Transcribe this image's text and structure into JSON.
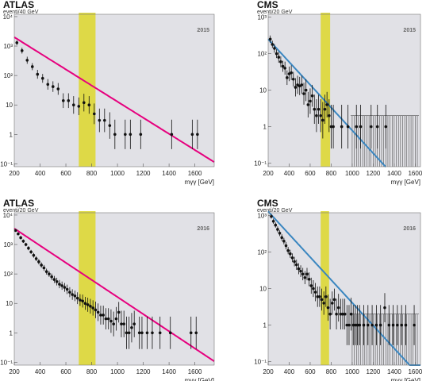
{
  "colors": {
    "plot_bg": "#e1e1e6",
    "band": "#ddd83a",
    "points": "#111111",
    "atlas_fit": "#e6007e",
    "cms_fit": "#3a86c0"
  },
  "chart_data": [
    {
      "type": "scatter",
      "experiment": "ATLAS",
      "unit_label": "eventi/40 GeV",
      "year": "2015",
      "xlabel": "mγγ [GeV]",
      "xlim": [
        200,
        1750
      ],
      "ylim": [
        0.08,
        12000
      ],
      "ylog": true,
      "xticks": [
        "200",
        "400",
        "600",
        "800",
        "1000",
        "1200",
        "1400",
        "1600"
      ],
      "yticks": [
        "10⁻¹",
        "1",
        "10",
        "10²",
        "10³",
        "10⁴"
      ],
      "band": [
        700,
        830
      ],
      "fit": {
        "name": "",
        "a": 2000,
        "slope": 0.0063
      },
      "points": [
        {
          "x": 220,
          "y": 1300,
          "err": 0.08
        },
        {
          "x": 260,
          "y": 700,
          "err": 0.1
        },
        {
          "x": 300,
          "y": 330,
          "err": 0.12
        },
        {
          "x": 340,
          "y": 200,
          "err": 0.12
        },
        {
          "x": 380,
          "y": 110,
          "err": 0.15
        },
        {
          "x": 420,
          "y": 80,
          "err": 0.15
        },
        {
          "x": 460,
          "y": 50,
          "err": 0.18
        },
        {
          "x": 500,
          "y": 42,
          "err": 0.18
        },
        {
          "x": 540,
          "y": 35,
          "err": 0.2
        },
        {
          "x": 580,
          "y": 14,
          "err": 0.25
        },
        {
          "x": 620,
          "y": 14,
          "err": 0.25
        },
        {
          "x": 660,
          "y": 10,
          "err": 0.3
        },
        {
          "x": 700,
          "y": 9,
          "err": 0.3
        },
        {
          "x": 740,
          "y": 12,
          "err": 0.3
        },
        {
          "x": 780,
          "y": 10,
          "err": 0.3
        },
        {
          "x": 820,
          "y": 5,
          "err": 0.35
        },
        {
          "x": 860,
          "y": 3,
          "err": 0.4
        },
        {
          "x": 900,
          "y": 3,
          "err": 0.4
        },
        {
          "x": 940,
          "y": 2,
          "err": 0.45
        },
        {
          "x": 980,
          "y": 1,
          "err": 0.5
        },
        {
          "x": 1060,
          "y": 1,
          "err": 0.5
        },
        {
          "x": 1100,
          "y": 1,
          "err": 0.5
        },
        {
          "x": 1180,
          "y": 1,
          "err": 0.5
        },
        {
          "x": 1420,
          "y": 1,
          "err": 0.5
        },
        {
          "x": 1580,
          "y": 1,
          "err": 0.5
        },
        {
          "x": 1620,
          "y": 1,
          "err": 0.5
        }
      ]
    },
    {
      "type": "scatter",
      "experiment": "CMS",
      "unit_label": "eventi/20 GeV",
      "year": "2015",
      "xlabel": "mγγ [GeV]",
      "xlim": [
        200,
        1650
      ],
      "ylim": [
        0.08,
        1200
      ],
      "ylog": true,
      "xticks": [
        "200",
        "400",
        "600",
        "800",
        "1000",
        "1200",
        "1400",
        "1600"
      ],
      "yticks": [
        "10⁻¹",
        "1",
        "10",
        "10²",
        "10³"
      ],
      "band": [
        700,
        790
      ],
      "fit": {
        "name": "",
        "a": 250,
        "slope": 0.0072,
        "xmax": 1320
      },
      "points": [
        {
          "x": 220,
          "y": 250,
          "err": 0.1
        },
        {
          "x": 240,
          "y": 180,
          "err": 0.1
        },
        {
          "x": 260,
          "y": 140,
          "err": 0.12
        },
        {
          "x": 280,
          "y": 100,
          "err": 0.12
        },
        {
          "x": 300,
          "y": 80,
          "err": 0.15
        },
        {
          "x": 320,
          "y": 60,
          "err": 0.15
        },
        {
          "x": 340,
          "y": 45,
          "err": 0.15
        },
        {
          "x": 360,
          "y": 40,
          "err": 0.18
        },
        {
          "x": 380,
          "y": 22,
          "err": 0.2
        },
        {
          "x": 400,
          "y": 28,
          "err": 0.2
        },
        {
          "x": 420,
          "y": 30,
          "err": 0.2
        },
        {
          "x": 440,
          "y": 20,
          "err": 0.2
        },
        {
          "x": 460,
          "y": 12,
          "err": 0.25
        },
        {
          "x": 480,
          "y": 14,
          "err": 0.25
        },
        {
          "x": 500,
          "y": 13,
          "err": 0.25
        },
        {
          "x": 520,
          "y": 14,
          "err": 0.25
        },
        {
          "x": 540,
          "y": 8,
          "err": 0.3
        },
        {
          "x": 560,
          "y": 10,
          "err": 0.3
        },
        {
          "x": 580,
          "y": 4,
          "err": 0.35
        },
        {
          "x": 600,
          "y": 5,
          "err": 0.35
        },
        {
          "x": 620,
          "y": 7,
          "err": 0.3
        },
        {
          "x": 640,
          "y": 3,
          "err": 0.4
        },
        {
          "x": 660,
          "y": 2,
          "err": 0.45
        },
        {
          "x": 680,
          "y": 3,
          "err": 0.4
        },
        {
          "x": 700,
          "y": 2,
          "err": 0.45
        },
        {
          "x": 720,
          "y": 1.5,
          "err": 0.5
        },
        {
          "x": 740,
          "y": 3,
          "err": 0.4
        },
        {
          "x": 760,
          "y": 4,
          "err": 0.35
        },
        {
          "x": 780,
          "y": 2,
          "err": 0.45
        },
        {
          "x": 800,
          "y": 1,
          "err": 0.6
        },
        {
          "x": 820,
          "y": 1,
          "err": 0.6
        },
        {
          "x": 900,
          "y": 1,
          "err": 0.6
        },
        {
          "x": 960,
          "y": 1,
          "err": 0.6
        },
        {
          "x": 1040,
          "y": 1,
          "err": 0.6
        },
        {
          "x": 1080,
          "y": 1,
          "err": 0.6
        },
        {
          "x": 1180,
          "y": 1,
          "err": 0.6
        },
        {
          "x": 1240,
          "y": 1,
          "err": 0.6
        },
        {
          "x": 1320,
          "y": 1,
          "err": 0.6
        }
      ],
      "zero_bins": {
        "from": 1000,
        "to": 1620,
        "step": 20,
        "up": 2
      }
    },
    {
      "type": "scatter",
      "experiment": "ATLAS",
      "unit_label": "eventi/20 GeV",
      "year": "2016",
      "xlabel": "mγγ [GeV]",
      "xlim": [
        200,
        1750
      ],
      "ylim": [
        0.08,
        12000
      ],
      "ylog": true,
      "xticks": [
        "200",
        "400",
        "600",
        "800",
        "1000",
        "1200",
        "1400",
        "1600"
      ],
      "yticks": [
        "10⁻¹",
        "1",
        "10",
        "10²",
        "10³",
        "10⁴"
      ],
      "band": [
        700,
        830
      ],
      "fit": {
        "name": "",
        "a": 3500,
        "slope": 0.0067
      },
      "points": [
        {
          "x": 210,
          "y": 3000,
          "err": 0.05
        },
        {
          "x": 230,
          "y": 2300,
          "err": 0.05
        },
        {
          "x": 250,
          "y": 1700,
          "err": 0.06
        },
        {
          "x": 270,
          "y": 1300,
          "err": 0.06
        },
        {
          "x": 290,
          "y": 1000,
          "err": 0.06
        },
        {
          "x": 310,
          "y": 750,
          "err": 0.07
        },
        {
          "x": 330,
          "y": 560,
          "err": 0.07
        },
        {
          "x": 350,
          "y": 430,
          "err": 0.08
        },
        {
          "x": 370,
          "y": 330,
          "err": 0.08
        },
        {
          "x": 390,
          "y": 260,
          "err": 0.09
        },
        {
          "x": 410,
          "y": 200,
          "err": 0.09
        },
        {
          "x": 430,
          "y": 160,
          "err": 0.1
        },
        {
          "x": 450,
          "y": 120,
          "err": 0.1
        },
        {
          "x": 470,
          "y": 100,
          "err": 0.1
        },
        {
          "x": 490,
          "y": 80,
          "err": 0.11
        },
        {
          "x": 510,
          "y": 65,
          "err": 0.12
        },
        {
          "x": 530,
          "y": 55,
          "err": 0.13
        },
        {
          "x": 550,
          "y": 45,
          "err": 0.14
        },
        {
          "x": 570,
          "y": 40,
          "err": 0.14
        },
        {
          "x": 590,
          "y": 35,
          "err": 0.15
        },
        {
          "x": 610,
          "y": 30,
          "err": 0.16
        },
        {
          "x": 630,
          "y": 24,
          "err": 0.17
        },
        {
          "x": 650,
          "y": 20,
          "err": 0.18
        },
        {
          "x": 670,
          "y": 18,
          "err": 0.18
        },
        {
          "x": 690,
          "y": 15,
          "err": 0.2
        },
        {
          "x": 710,
          "y": 13,
          "err": 0.2
        },
        {
          "x": 730,
          "y": 12,
          "err": 0.22
        },
        {
          "x": 750,
          "y": 10,
          "err": 0.22
        },
        {
          "x": 770,
          "y": 9,
          "err": 0.24
        },
        {
          "x": 790,
          "y": 8,
          "err": 0.25
        },
        {
          "x": 810,
          "y": 7,
          "err": 0.26
        },
        {
          "x": 830,
          "y": 6,
          "err": 0.28
        },
        {
          "x": 850,
          "y": 5,
          "err": 0.3
        },
        {
          "x": 870,
          "y": 4,
          "err": 0.32
        },
        {
          "x": 890,
          "y": 4,
          "err": 0.32
        },
        {
          "x": 910,
          "y": 3,
          "err": 0.36
        },
        {
          "x": 930,
          "y": 3,
          "err": 0.36
        },
        {
          "x": 950,
          "y": 2.5,
          "err": 0.4
        },
        {
          "x": 970,
          "y": 2,
          "err": 0.42
        },
        {
          "x": 990,
          "y": 3,
          "err": 0.4
        },
        {
          "x": 1010,
          "y": 5,
          "err": 0.35
        },
        {
          "x": 1030,
          "y": 2,
          "err": 0.45
        },
        {
          "x": 1050,
          "y": 2,
          "err": 0.45
        },
        {
          "x": 1070,
          "y": 1,
          "err": 0.55
        },
        {
          "x": 1090,
          "y": 1,
          "err": 0.55
        },
        {
          "x": 1110,
          "y": 1.5,
          "err": 0.5
        },
        {
          "x": 1130,
          "y": 2,
          "err": 0.45
        },
        {
          "x": 1170,
          "y": 1,
          "err": 0.55
        },
        {
          "x": 1190,
          "y": 1,
          "err": 0.55
        },
        {
          "x": 1230,
          "y": 1,
          "err": 0.55
        },
        {
          "x": 1270,
          "y": 1,
          "err": 0.55
        },
        {
          "x": 1330,
          "y": 1,
          "err": 0.55
        },
        {
          "x": 1410,
          "y": 1,
          "err": 0.55
        },
        {
          "x": 1570,
          "y": 1,
          "err": 0.55
        },
        {
          "x": 1610,
          "y": 1,
          "err": 0.55
        }
      ]
    },
    {
      "type": "scatter",
      "experiment": "CMS",
      "unit_label": "eventi/20 GeV",
      "year": "2016",
      "xlabel": "mγγ [GeV]",
      "xlim": [
        200,
        1650
      ],
      "ylim": [
        0.08,
        1200
      ],
      "ylog": true,
      "xticks": [
        "200",
        "400",
        "600",
        "800",
        "1000",
        "1200",
        "1400",
        "1600"
      ],
      "yticks": [
        "10⁻¹",
        "1",
        "10",
        "10²",
        "10³"
      ],
      "band": [
        700,
        780
      ],
      "fit": {
        "name": "",
        "a": 1300,
        "slope": 0.0072
      },
      "points": [
        {
          "x": 230,
          "y": 950,
          "err": 0.06
        },
        {
          "x": 250,
          "y": 700,
          "err": 0.07
        },
        {
          "x": 270,
          "y": 550,
          "err": 0.07
        },
        {
          "x": 290,
          "y": 420,
          "err": 0.08
        },
        {
          "x": 310,
          "y": 330,
          "err": 0.08
        },
        {
          "x": 330,
          "y": 250,
          "err": 0.09
        },
        {
          "x": 350,
          "y": 200,
          "err": 0.09
        },
        {
          "x": 370,
          "y": 150,
          "err": 0.1
        },
        {
          "x": 390,
          "y": 110,
          "err": 0.1
        },
        {
          "x": 410,
          "y": 90,
          "err": 0.11
        },
        {
          "x": 430,
          "y": 70,
          "err": 0.12
        },
        {
          "x": 450,
          "y": 55,
          "err": 0.13
        },
        {
          "x": 470,
          "y": 45,
          "err": 0.14
        },
        {
          "x": 490,
          "y": 35,
          "err": 0.15
        },
        {
          "x": 510,
          "y": 30,
          "err": 0.16
        },
        {
          "x": 530,
          "y": 25,
          "err": 0.17
        },
        {
          "x": 550,
          "y": 20,
          "err": 0.18
        },
        {
          "x": 570,
          "y": 25,
          "err": 0.17
        },
        {
          "x": 590,
          "y": 18,
          "err": 0.19
        },
        {
          "x": 610,
          "y": 12,
          "err": 0.22
        },
        {
          "x": 630,
          "y": 10,
          "err": 0.23
        },
        {
          "x": 650,
          "y": 8,
          "err": 0.25
        },
        {
          "x": 670,
          "y": 6,
          "err": 0.28
        },
        {
          "x": 690,
          "y": 6,
          "err": 0.28
        },
        {
          "x": 710,
          "y": 5,
          "err": 0.3
        },
        {
          "x": 730,
          "y": 4,
          "err": 0.32
        },
        {
          "x": 750,
          "y": 6,
          "err": 0.28
        },
        {
          "x": 770,
          "y": 3,
          "err": 0.36
        },
        {
          "x": 790,
          "y": 2,
          "err": 0.42
        },
        {
          "x": 810,
          "y": 4,
          "err": 0.32
        },
        {
          "x": 830,
          "y": 5,
          "err": 0.3
        },
        {
          "x": 850,
          "y": 2,
          "err": 0.42
        },
        {
          "x": 870,
          "y": 3,
          "err": 0.38
        },
        {
          "x": 890,
          "y": 2,
          "err": 0.42
        },
        {
          "x": 910,
          "y": 2,
          "err": 0.42
        },
        {
          "x": 930,
          "y": 2,
          "err": 0.42
        },
        {
          "x": 950,
          "y": 1,
          "err": 0.55
        },
        {
          "x": 970,
          "y": 1,
          "err": 0.55
        },
        {
          "x": 990,
          "y": 2,
          "err": 0.45
        },
        {
          "x": 1010,
          "y": 1,
          "err": 0.55
        },
        {
          "x": 1030,
          "y": 1,
          "err": 0.55
        },
        {
          "x": 1050,
          "y": 1,
          "err": 0.55
        },
        {
          "x": 1070,
          "y": 1,
          "err": 0.55
        },
        {
          "x": 1110,
          "y": 1,
          "err": 0.55
        },
        {
          "x": 1150,
          "y": 1,
          "err": 0.55
        },
        {
          "x": 1190,
          "y": 1,
          "err": 0.55
        },
        {
          "x": 1230,
          "y": 1,
          "err": 0.55
        },
        {
          "x": 1270,
          "y": 1,
          "err": 0.55
        },
        {
          "x": 1310,
          "y": 3,
          "err": 0.4
        },
        {
          "x": 1350,
          "y": 1,
          "err": 0.55
        },
        {
          "x": 1390,
          "y": 1,
          "err": 0.55
        },
        {
          "x": 1430,
          "y": 1,
          "err": 0.55
        },
        {
          "x": 1470,
          "y": 1,
          "err": 0.55
        },
        {
          "x": 1510,
          "y": 1,
          "err": 0.55
        },
        {
          "x": 1590,
          "y": 1,
          "err": 0.55
        }
      ],
      "zero_bins": {
        "from": 1000,
        "to": 1620,
        "step": 20,
        "up": 2
      }
    }
  ]
}
